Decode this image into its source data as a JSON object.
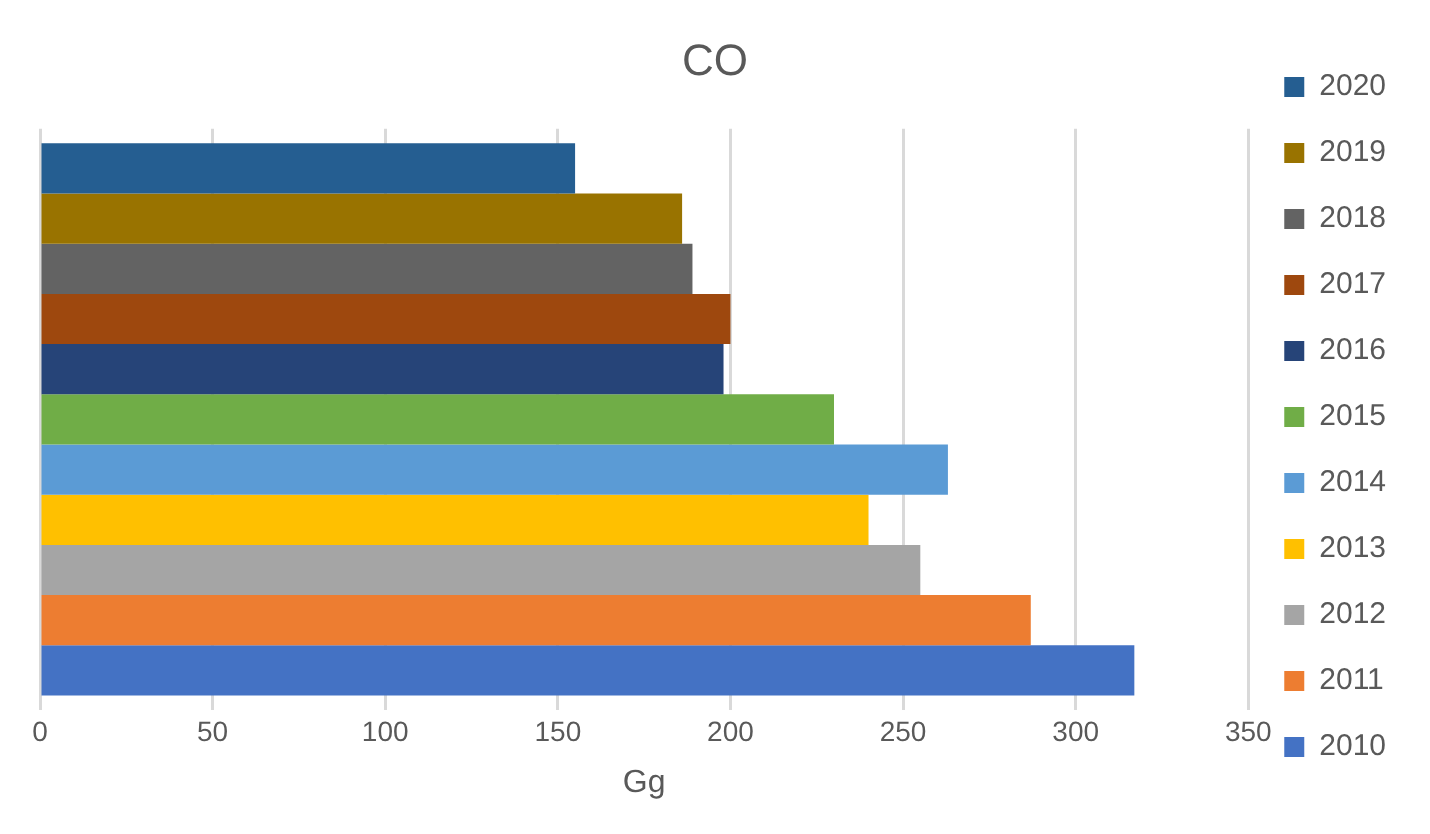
{
  "chart_data": {
    "type": "bar",
    "orientation": "horizontal",
    "title": "CO",
    "xlabel": "Gg",
    "categories": [
      null
    ],
    "series": [
      {
        "name": "2020",
        "color": "#255e91",
        "values": [
          155
        ]
      },
      {
        "name": "2019",
        "color": "#997300",
        "values": [
          186
        ]
      },
      {
        "name": "2018",
        "color": "#636363",
        "values": [
          189
        ]
      },
      {
        "name": "2017",
        "color": "#9e480e",
        "values": [
          200
        ]
      },
      {
        "name": "2016",
        "color": "#264478",
        "values": [
          198
        ]
      },
      {
        "name": "2015",
        "color": "#70ad47",
        "values": [
          230
        ]
      },
      {
        "name": "2014",
        "color": "#5b9bd5",
        "values": [
          263
        ]
      },
      {
        "name": "2013",
        "color": "#ffc000",
        "values": [
          240
        ]
      },
      {
        "name": "2012",
        "color": "#a5a5a5",
        "values": [
          255
        ]
      },
      {
        "name": "2011",
        "color": "#ed7d31",
        "values": [
          287
        ]
      },
      {
        "name": "2010",
        "color": "#4472c4",
        "values": [
          317
        ]
      }
    ],
    "xlim": [
      0,
      350
    ],
    "xticks": [
      0,
      50,
      100,
      150,
      200,
      250,
      300,
      350
    ],
    "grid": "x",
    "legend": "right"
  }
}
